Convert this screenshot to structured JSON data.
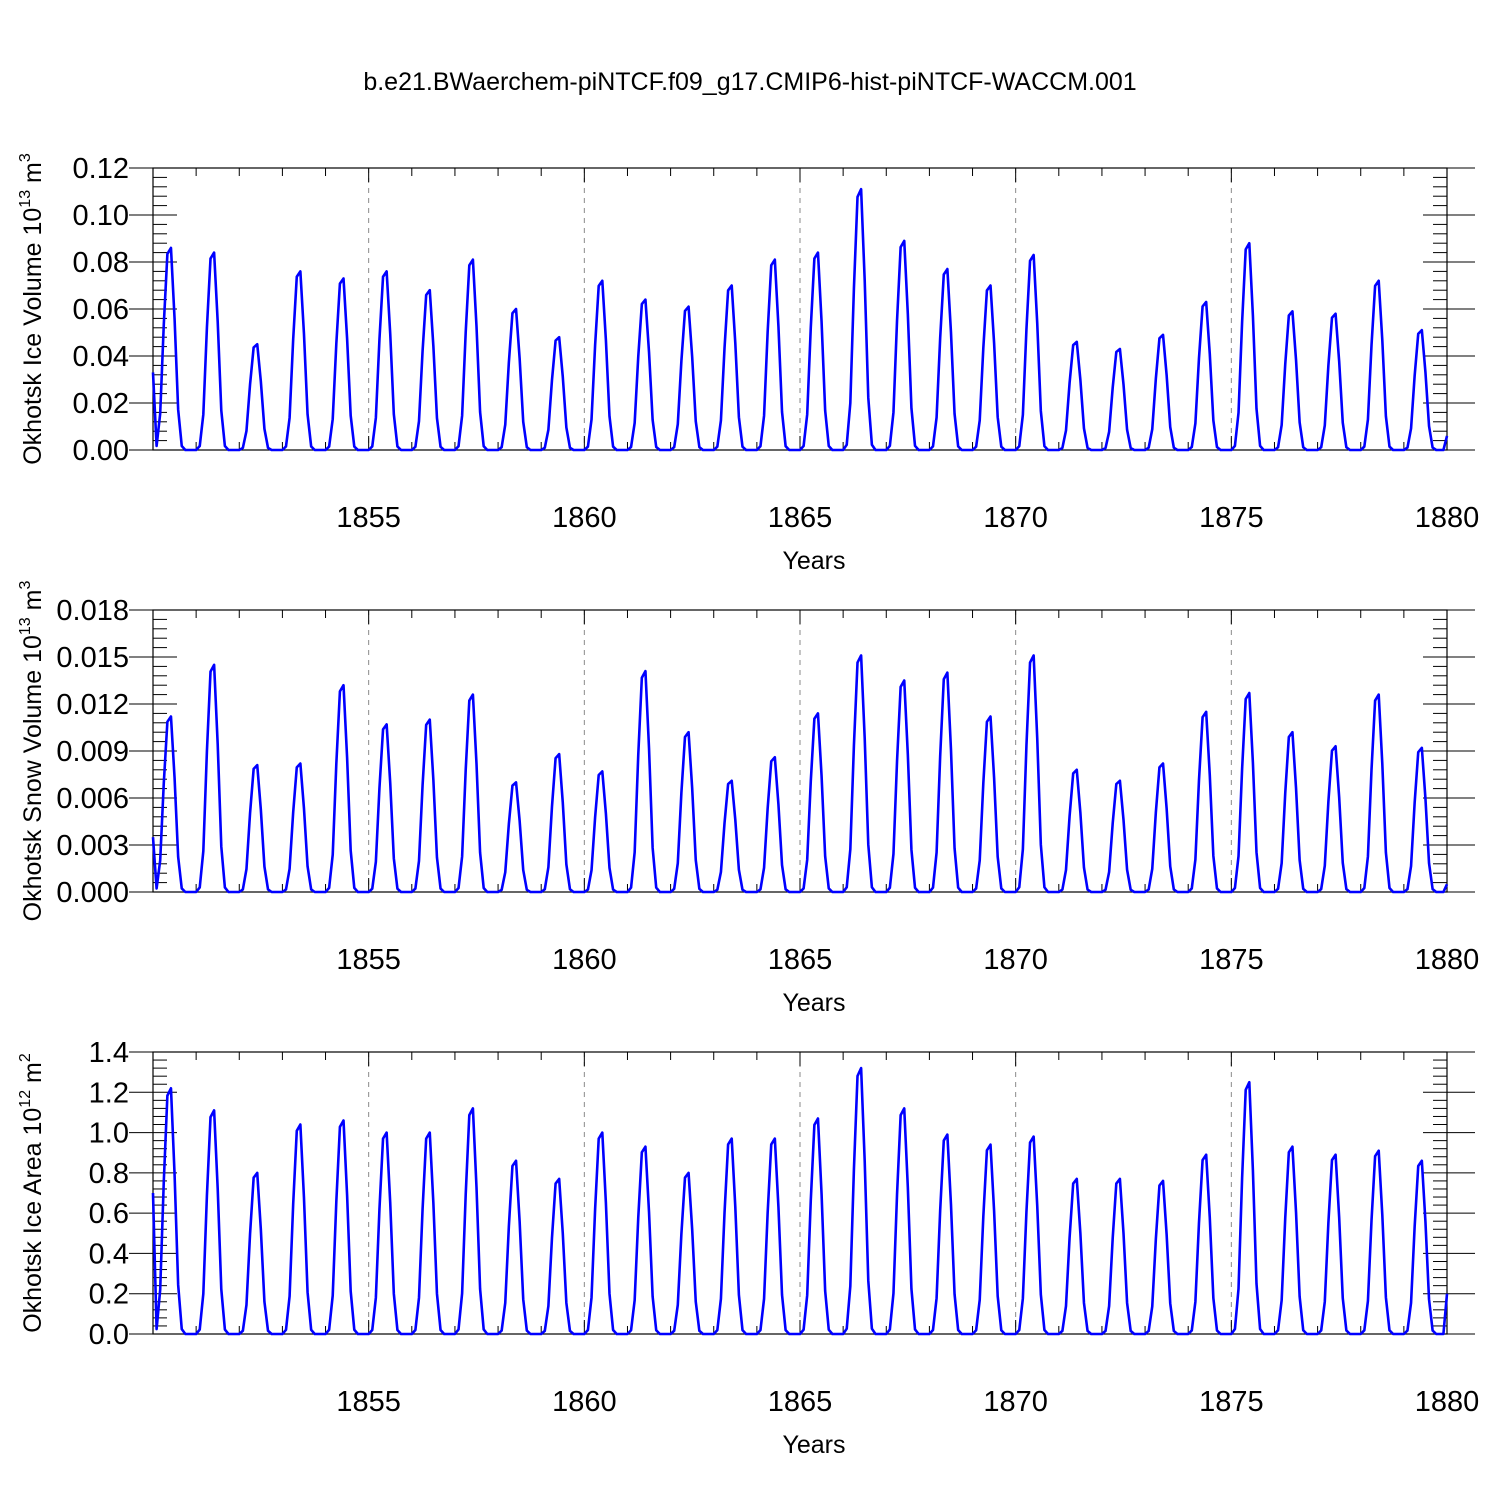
{
  "chart_data": {
    "title": "b.e21.BWaerchem-piNTCF.f09_g17.CMIP6-hist-piNTCF-WACCM.001",
    "subplots": [
      {
        "type": "line",
        "ylabel": "Okhotsk Ice Volume 10",
        "ylabel_exp": "13",
        "ylabel_unit": " m",
        "ylabel_unit_exp": "3",
        "xlabel": "Years",
        "xlim": [
          1850,
          1880
        ],
        "ylim": [
          0,
          0.12
        ],
        "yticks": [
          0,
          0.02,
          0.04,
          0.06,
          0.08,
          0.1,
          0.12
        ],
        "ytick_labels": [
          "0.00",
          "0.02",
          "0.04",
          "0.06",
          "0.08",
          "0.10",
          "0.12"
        ],
        "xticks": [
          1855,
          1860,
          1865,
          1870,
          1875,
          1880
        ],
        "xtick_labels": [
          "1855",
          "1860",
          "1865",
          "1870",
          "1875",
          "1880"
        ],
        "start_value": 0.033,
        "annual_peaks": [
          0.086,
          0.084,
          0.045,
          0.076,
          0.073,
          0.076,
          0.068,
          0.081,
          0.06,
          0.048,
          0.072,
          0.064,
          0.061,
          0.07,
          0.081,
          0.084,
          0.111,
          0.089,
          0.077,
          0.07,
          0.083,
          0.046,
          0.043,
          0.049,
          0.063,
          0.088,
          0.059,
          0.058,
          0.072,
          0.051
        ],
        "end_value": 0.006,
        "series_name": "Okhotsk Ice Volume",
        "color": "#0000ff"
      },
      {
        "type": "line",
        "ylabel": "Okhotsk Snow Volume 10",
        "ylabel_exp": "13",
        "ylabel_unit": " m",
        "ylabel_unit_exp": "3",
        "xlabel": "Years",
        "xlim": [
          1850,
          1880
        ],
        "ylim": [
          0,
          0.018
        ],
        "yticks": [
          0,
          0.003,
          0.006,
          0.009,
          0.012,
          0.015,
          0.018
        ],
        "ytick_labels": [
          "0.000",
          "0.003",
          "0.006",
          "0.009",
          "0.012",
          "0.015",
          "0.018"
        ],
        "xticks": [
          1855,
          1860,
          1865,
          1870,
          1875,
          1880
        ],
        "xtick_labels": [
          "1855",
          "1860",
          "1865",
          "1870",
          "1875",
          "1880"
        ],
        "start_value": 0.0035,
        "annual_peaks": [
          0.0112,
          0.0145,
          0.0081,
          0.0082,
          0.0132,
          0.0107,
          0.011,
          0.0126,
          0.007,
          0.0088,
          0.0077,
          0.0141,
          0.0102,
          0.0071,
          0.0086,
          0.0114,
          0.0151,
          0.0135,
          0.014,
          0.0112,
          0.0151,
          0.0078,
          0.0071,
          0.0082,
          0.0115,
          0.0127,
          0.0102,
          0.0093,
          0.0126,
          0.0092
        ],
        "end_value": 0.0005,
        "series_name": "Okhotsk Snow Volume",
        "color": "#0000ff"
      },
      {
        "type": "line",
        "ylabel": "Okhotsk Ice Area 10",
        "ylabel_exp": "12",
        "ylabel_unit": " m",
        "ylabel_unit_exp": "2",
        "xlabel": "Years",
        "xlim": [
          1850,
          1880
        ],
        "ylim": [
          0,
          1.4
        ],
        "yticks": [
          0,
          0.2,
          0.4,
          0.6,
          0.8,
          1.0,
          1.2,
          1.4
        ],
        "ytick_labels": [
          "0.0",
          "0.2",
          "0.4",
          "0.6",
          "0.8",
          "1.0",
          "1.2",
          "1.4"
        ],
        "xticks": [
          1855,
          1860,
          1865,
          1870,
          1875,
          1880
        ],
        "xtick_labels": [
          "1855",
          "1860",
          "1865",
          "1870",
          "1875",
          "1880"
        ],
        "start_value": 0.7,
        "annual_peaks": [
          1.22,
          1.11,
          0.8,
          1.04,
          1.06,
          1.0,
          1.0,
          1.12,
          0.86,
          0.77,
          1.0,
          0.93,
          0.8,
          0.97,
          0.97,
          1.07,
          1.32,
          1.12,
          0.99,
          0.94,
          0.98,
          0.77,
          0.77,
          0.76,
          0.89,
          1.25,
          0.93,
          0.89,
          0.91,
          0.86
        ],
        "end_value": 0.2,
        "series_name": "Okhotsk Ice Area",
        "color": "#0000ff"
      }
    ]
  }
}
